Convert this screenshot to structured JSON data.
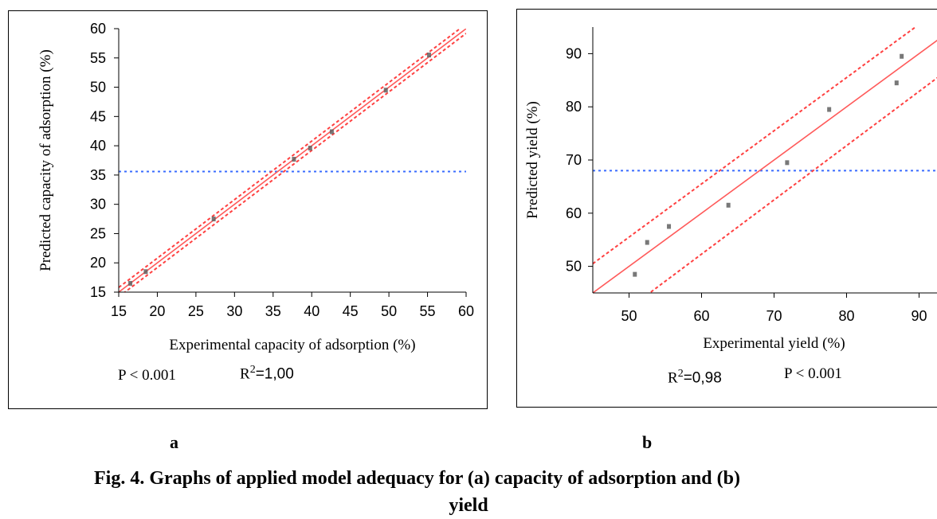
{
  "chart_data": [
    {
      "type": "scatter",
      "panel": "a",
      "xlabel": "Experimental capacity of adsorption (%)",
      "ylabel": "Predicted capacity of adsorption (%)",
      "xlim": [
        15,
        60
      ],
      "ylim": [
        15,
        60
      ],
      "xticks": [
        15,
        20,
        25,
        30,
        35,
        40,
        45,
        50,
        55,
        60
      ],
      "yticks": [
        15,
        20,
        25,
        30,
        35,
        40,
        45,
        50,
        55,
        60
      ],
      "mean_line": 35.6,
      "fit_line": [
        [
          15,
          15
        ],
        [
          60,
          60
        ]
      ],
      "ci_upper": [
        [
          15,
          15.8
        ],
        [
          60,
          60.8
        ]
      ],
      "ci_lower": [
        [
          15,
          14.2
        ],
        [
          60,
          59.2
        ]
      ],
      "points": [
        [
          16.5,
          16.5
        ],
        [
          18.5,
          18.5
        ],
        [
          27.3,
          27.5
        ],
        [
          37.7,
          37.7
        ],
        [
          39.8,
          39.6
        ],
        [
          42.6,
          42.4
        ],
        [
          49.6,
          49.5
        ],
        [
          55.2,
          55.5
        ]
      ],
      "stats": {
        "p": "P < 0.001",
        "r2_label": "R",
        "r2_sup": "2",
        "r2_value": "=1,00"
      }
    },
    {
      "type": "scatter",
      "panel": "b",
      "xlabel": "Experimental yield (%)",
      "ylabel": "Predicted yield (%)",
      "xlim": [
        45,
        95
      ],
      "ylim": [
        45,
        95
      ],
      "xticks": [
        50,
        60,
        70,
        80,
        90
      ],
      "yticks": [
        50,
        60,
        70,
        80,
        90
      ],
      "mean_line": 68,
      "fit_line": [
        [
          45,
          45
        ],
        [
          95,
          95
        ]
      ],
      "ci_upper": [
        [
          45,
          50.5
        ],
        [
          95,
          100.5
        ]
      ],
      "ci_lower": [
        [
          45,
          37
        ],
        [
          95,
          88
        ]
      ],
      "points": [
        [
          50.8,
          48.5
        ],
        [
          52.5,
          54.5
        ],
        [
          55.5,
          57.5
        ],
        [
          63.7,
          61.5
        ],
        [
          71.8,
          69.5
        ],
        [
          77.6,
          79.5
        ],
        [
          86.9,
          84.5
        ],
        [
          87.6,
          89.5
        ]
      ],
      "stats": {
        "r2_label": "R",
        "r2_sup": "2",
        "r2_value": "=0,98",
        "p": "P < 0.001"
      }
    }
  ],
  "labels": {
    "a": "a",
    "b": "b"
  },
  "caption": {
    "line1": "Fig. 4. Graphs of applied model adequacy for (a) capacity of adsorption and (b)",
    "line2": "yield"
  },
  "colors": {
    "fit": "#ff5a5a",
    "ci": "#ff4040",
    "mean": "#3a6cff",
    "point": "#606060"
  }
}
